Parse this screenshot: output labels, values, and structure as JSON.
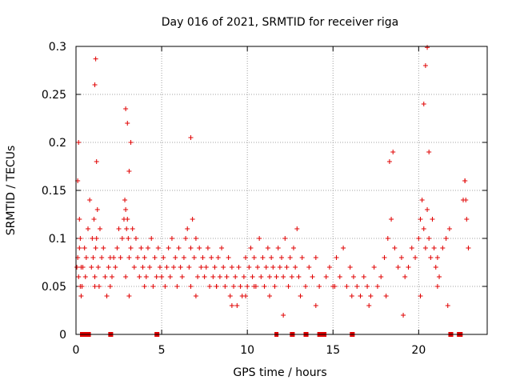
{
  "chart_data": {
    "type": "scatter",
    "title": "Day 016 of 2021, SRMTID for receiver riga",
    "xlabel": "GPS time / hours",
    "ylabel": "SRMTID / TECUs",
    "xlim": [
      0,
      24
    ],
    "ylim": [
      0,
      0.3
    ],
    "grid": true,
    "marker_symbol": "+",
    "x_ticks": [
      {
        "value": 0,
        "label": "0"
      },
      {
        "value": 5,
        "label": "5"
      },
      {
        "value": 10,
        "label": "10"
      },
      {
        "value": 15,
        "label": "15"
      },
      {
        "value": 20,
        "label": "20"
      }
    ],
    "y_ticks": [
      {
        "value": 0,
        "label": "0"
      },
      {
        "value": 0.05,
        "label": "0.05"
      },
      {
        "value": 0.1,
        "label": "0.1"
      },
      {
        "value": 0.15,
        "label": "0.15"
      },
      {
        "value": 0.2,
        "label": "0.2"
      },
      {
        "value": 0.25,
        "label": "0.25"
      },
      {
        "value": 0.3,
        "label": "0.3"
      }
    ],
    "series": [
      {
        "name": "SRMTID",
        "color": "#e00000",
        "x": [
          0.05,
          0.1,
          0.15,
          0.2,
          0.25,
          0.3,
          0.1,
          0.15,
          0.2,
          0.25,
          0.3,
          0.35,
          0.5,
          0.55,
          0.6,
          0.7,
          0.8,
          0.9,
          0.95,
          1.0,
          1.05,
          1.1,
          1.15,
          1.2,
          1.25,
          1.3,
          1.35,
          1.4,
          1.5,
          1.6,
          1.7,
          1.8,
          1.9,
          2.0,
          2.1,
          2.2,
          2.3,
          2.4,
          2.5,
          2.6,
          2.7,
          2.8,
          2.85,
          2.9,
          2.95,
          3.0,
          3.05,
          3.1,
          3.2,
          3.3,
          3.4,
          3.5,
          3.6,
          3.7,
          3.8,
          3.9,
          4.0,
          4.1,
          4.2,
          4.3,
          4.4,
          4.5,
          4.6,
          4.7,
          4.8,
          4.9,
          5.0,
          5.1,
          5.2,
          5.3,
          5.4,
          5.5,
          5.6,
          5.7,
          5.8,
          5.9,
          6.0,
          6.1,
          6.2,
          6.3,
          6.4,
          6.5,
          6.6,
          6.7,
          6.8,
          6.9,
          7.0,
          7.1,
          7.2,
          7.3,
          7.4,
          7.5,
          7.6,
          7.7,
          7.8,
          7.9,
          8.0,
          8.1,
          8.2,
          8.3,
          8.4,
          8.5,
          8.6,
          8.7,
          8.8,
          8.9,
          9.0,
          9.1,
          9.2,
          9.3,
          9.4,
          9.5,
          9.6,
          9.7,
          9.8,
          9.9,
          10.0,
          10.1,
          10.2,
          10.3,
          10.4,
          10.5,
          10.6,
          10.7,
          10.8,
          10.9,
          11.0,
          11.1,
          11.2,
          11.3,
          11.4,
          11.5,
          11.6,
          11.7,
          11.8,
          11.9,
          12.0,
          12.1,
          12.2,
          12.3,
          12.4,
          12.5,
          12.6,
          12.7,
          12.8,
          12.9,
          13.0,
          13.2,
          13.4,
          13.6,
          13.8,
          14.0,
          14.2,
          14.6,
          14.8,
          15.0,
          15.2,
          15.4,
          15.6,
          15.8,
          16.0,
          16.2,
          16.4,
          16.6,
          16.8,
          17.0,
          17.2,
          17.4,
          17.6,
          17.8,
          18.0,
          18.2,
          18.4,
          18.6,
          18.8,
          19.0,
          19.2,
          19.4,
          19.6,
          19.8,
          20.0,
          20.1,
          20.2,
          20.3,
          20.4,
          20.5,
          20.6,
          20.7,
          20.8,
          20.9,
          21.0,
          21.1,
          21.2,
          21.4,
          21.6,
          21.8,
          22.6,
          22.7,
          22.8,
          22.9,
          0.4,
          1.1,
          2.0,
          2.9,
          3.1,
          4.0,
          5.0,
          6.7,
          7.0,
          8.2,
          9.1,
          9.9,
          10.4,
          11.3,
          12.1,
          13.1,
          14.0,
          15.1,
          16.1,
          17.1,
          18.1,
          19.1,
          20.1,
          21.1,
          21.7,
          1.1,
          1.15,
          2.9,
          3.0,
          20.4,
          20.5,
          20.3,
          20.6,
          18.3,
          18.5,
          22.7,
          22.75,
          1.2,
          3.1,
          6.7,
          3.2
        ],
        "y": [
          0.07,
          0.08,
          0.06,
          0.09,
          0.05,
          0.04,
          0.16,
          0.2,
          0.12,
          0.1,
          0.07,
          0.05,
          0.09,
          0.06,
          0.08,
          0.11,
          0.14,
          0.07,
          0.1,
          0.08,
          0.12,
          0.06,
          0.09,
          0.1,
          0.13,
          0.07,
          0.05,
          0.11,
          0.08,
          0.09,
          0.06,
          0.04,
          0.07,
          0.05,
          0.06,
          0.08,
          0.07,
          0.09,
          0.11,
          0.08,
          0.1,
          0.12,
          0.14,
          0.13,
          0.11,
          0.12,
          0.1,
          0.08,
          0.09,
          0.11,
          0.07,
          0.1,
          0.08,
          0.06,
          0.09,
          0.07,
          0.08,
          0.06,
          0.09,
          0.07,
          0.1,
          0.05,
          0.08,
          0.06,
          0.09,
          0.07,
          0.06,
          0.08,
          0.05,
          0.07,
          0.09,
          0.06,
          0.1,
          0.07,
          0.08,
          0.05,
          0.09,
          0.07,
          0.06,
          0.08,
          0.1,
          0.11,
          0.07,
          0.09,
          0.12,
          0.08,
          0.1,
          0.06,
          0.09,
          0.07,
          0.08,
          0.06,
          0.07,
          0.09,
          0.05,
          0.08,
          0.06,
          0.07,
          0.05,
          0.08,
          0.06,
          0.09,
          0.07,
          0.05,
          0.06,
          0.08,
          0.04,
          0.07,
          0.05,
          0.06,
          0.03,
          0.07,
          0.05,
          0.04,
          0.06,
          0.08,
          0.05,
          0.07,
          0.09,
          0.06,
          0.08,
          0.05,
          0.07,
          0.1,
          0.06,
          0.08,
          0.05,
          0.07,
          0.09,
          0.06,
          0.08,
          0.07,
          0.05,
          0.06,
          0.09,
          0.07,
          0.08,
          0.06,
          0.1,
          0.07,
          0.05,
          0.08,
          0.06,
          0.09,
          0.07,
          0.11,
          0.06,
          0.08,
          0.05,
          0.07,
          0.06,
          0.08,
          0.05,
          0.06,
          0.07,
          0.05,
          0.08,
          0.06,
          0.09,
          0.05,
          0.07,
          0.06,
          0.05,
          0.04,
          0.06,
          0.05,
          0.04,
          0.07,
          0.05,
          0.06,
          0.08,
          0.1,
          0.12,
          0.09,
          0.07,
          0.08,
          0.06,
          0.07,
          0.09,
          0.08,
          0.1,
          0.12,
          0.14,
          0.11,
          0.09,
          0.13,
          0.1,
          0.08,
          0.12,
          0.09,
          0.07,
          0.08,
          0.06,
          0.09,
          0.1,
          0.11,
          0.14,
          0.16,
          0.12,
          0.09,
          0.07,
          0.05,
          0.08,
          0.06,
          0.04,
          0.05,
          0.06,
          0.05,
          0.04,
          0.05,
          0.03,
          0.04,
          0.05,
          0.04,
          0.02,
          0.04,
          0.03,
          0.05,
          0.04,
          0.03,
          0.04,
          0.02,
          0.04,
          0.05,
          0.03,
          0.26,
          0.287,
          0.235,
          0.22,
          0.28,
          0.299,
          0.24,
          0.19,
          0.18,
          0.19,
          0.16,
          0.14,
          0.18,
          0.17,
          0.205,
          0.2
        ]
      }
    ],
    "flag_markers": {
      "y": 0,
      "x": [
        0.35,
        0.55,
        0.7,
        0.75,
        2.0,
        2.05,
        4.7,
        4.75,
        11.7,
        12.6,
        12.65,
        13.4,
        13.45,
        14.2,
        14.3,
        14.4,
        14.45,
        14.5,
        16.1,
        16.15,
        21.85,
        21.9,
        22.35,
        22.4,
        22.45
      ]
    }
  }
}
